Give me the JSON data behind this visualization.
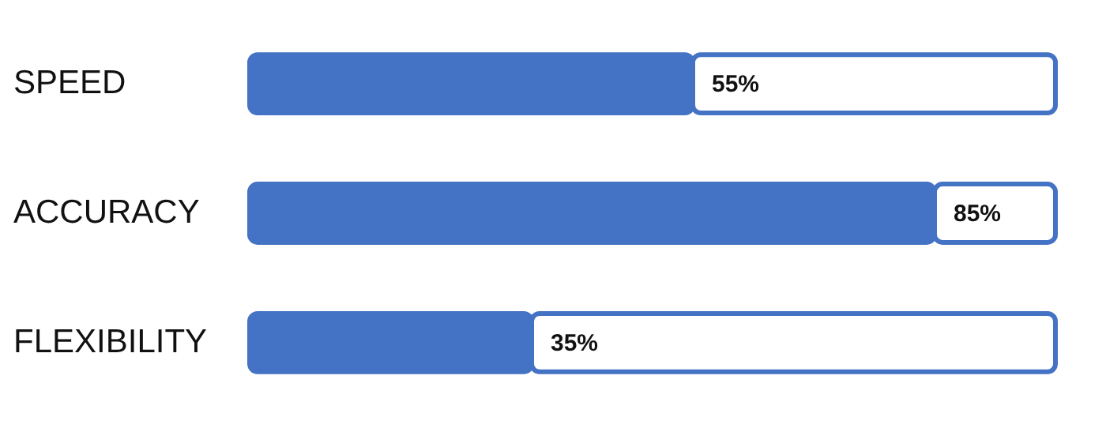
{
  "chart_data": {
    "type": "bar",
    "orientation": "horizontal",
    "stacked": true,
    "categories": [
      "SPEED",
      "ACCURACY",
      "FLEXIBILITY"
    ],
    "series": [
      {
        "color": "#4472c4",
        "values": [
          55,
          85,
          35
        ],
        "value_labels": [
          "55%",
          "85%",
          "35%"
        ]
      },
      {
        "color": "#ffffff",
        "values": [
          45,
          15,
          65
        ]
      }
    ],
    "xlim": [
      0,
      100
    ],
    "tick_labels": "y",
    "grid": false
  }
}
